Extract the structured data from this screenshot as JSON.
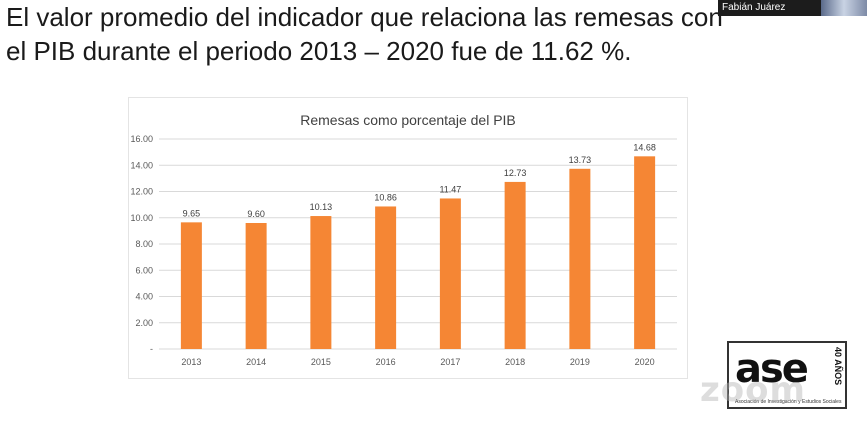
{
  "slide": {
    "headline": "El valor promedio del indicador que relaciona las remesas con el PIB durante el periodo 2013 – 2020 fue de 11.62 %."
  },
  "participant": {
    "name": "Fabián Juárez"
  },
  "logo": {
    "text": "ase",
    "side": "40 AÑOS",
    "sub": "Asociación de Investigación y Estudios Sociales"
  },
  "watermark": "zoom",
  "colors": {
    "bar": "#F58634",
    "grid": "#D9D9D9",
    "axis_text": "#595959"
  },
  "chart_data": {
    "type": "bar",
    "title": "Remesas como porcentaje del PIB",
    "categories": [
      "2013",
      "2014",
      "2015",
      "2016",
      "2017",
      "2018",
      "2019",
      "2020"
    ],
    "values": [
      9.65,
      9.6,
      10.13,
      10.86,
      11.47,
      12.73,
      13.73,
      14.68
    ],
    "data_labels": [
      "9.65",
      "9.60",
      "10.13",
      "10.86",
      "11.47",
      "12.73",
      "13.73",
      "14.68"
    ],
    "ylim": [
      0,
      16
    ],
    "yticks": [
      "-",
      "2.00",
      "4.00",
      "6.00",
      "8.00",
      "10.00",
      "12.00",
      "14.00",
      "16.00"
    ],
    "xlabel": "",
    "ylabel": "",
    "grid": true,
    "legend": "none"
  }
}
